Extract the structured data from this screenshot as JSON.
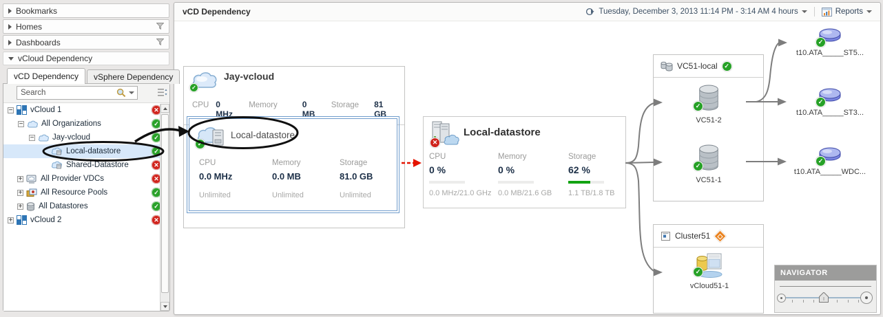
{
  "colors": {
    "status_ok": "#2aa12a",
    "status_error": "#d0231c",
    "status_warning": "#ea8320",
    "selection_blue": "#6f9ccc",
    "bar_green": "#12a312",
    "connector_gray": "#7d7d7d",
    "dependency_arrow_red": "#e51400"
  },
  "sidebar": {
    "sections": [
      {
        "label": "Bookmarks"
      },
      {
        "label": "Homes"
      },
      {
        "label": "Dashboards"
      },
      {
        "label": "vCloud Dependency"
      }
    ],
    "tabs": [
      {
        "label": "vCD Dependency"
      },
      {
        "label": "vSphere Dependency"
      }
    ],
    "search": {
      "placeholder": "Search"
    },
    "tree": [
      {
        "label": "vCloud 1",
        "status": "error"
      },
      {
        "label": "All Organizations",
        "status": "ok"
      },
      {
        "label": "Jay-vcloud",
        "status": "ok"
      },
      {
        "label": "Local-datastore",
        "status": "ok"
      },
      {
        "label": "Shared-Datastore",
        "status": "error"
      },
      {
        "label": "All Provider VDCs",
        "status": "error"
      },
      {
        "label": "All Resource Pools",
        "status": "ok"
      },
      {
        "label": "All Datastores",
        "status": "ok"
      },
      {
        "label": "vCloud 2",
        "status": "error"
      }
    ]
  },
  "header": {
    "title": "vCD Dependency",
    "time_range": "Tuesday, December 3, 2013 11:14 PM - 3:14 AM 4 hours",
    "reports_label": "Reports"
  },
  "canvas": {
    "jay_box": {
      "title": "Jay-vcloud",
      "metrics": [
        {
          "label": "CPU",
          "value": "0 MHz"
        },
        {
          "label": "Memory",
          "value": "0 MB"
        },
        {
          "label": "Storage",
          "value": "81 GB"
        }
      ],
      "child": {
        "title": "Local-datastore",
        "metrics": [
          {
            "label": "CPU",
            "value": "0.0 MHz",
            "limit": "Unlimited"
          },
          {
            "label": "Memory",
            "value": "0.0 MB",
            "limit": "Unlimited"
          },
          {
            "label": "Storage",
            "value": "81.0 GB",
            "limit": "Unlimited"
          }
        ]
      }
    },
    "datastore_card": {
      "title": "Local-datastore",
      "metrics": [
        {
          "label": "CPU",
          "value": "0 %",
          "detail": "0.0 MHz/21.0 GHz",
          "pct": 0
        },
        {
          "label": "Memory",
          "value": "0 %",
          "detail": "0.0 MB/21.6 GB",
          "pct": 0
        },
        {
          "label": "Storage",
          "value": "62 %",
          "detail": "1.1 TB/1.8 TB",
          "pct": 62
        }
      ]
    },
    "vc51_panel": {
      "title": "VC51-local",
      "nodes": [
        {
          "label": "VC51-2"
        },
        {
          "label": "VC51-1"
        }
      ]
    },
    "cluster_panel": {
      "title": "Cluster51",
      "nodes": [
        {
          "label": "vCloud51-1"
        }
      ]
    },
    "disks": [
      {
        "label": "t10.ATA_____ST5..."
      },
      {
        "label": "t10.ATA_____ST3..."
      },
      {
        "label": "t10.ATA_____WDC..."
      }
    ]
  },
  "navigator": {
    "title": "NAVIGATOR"
  }
}
